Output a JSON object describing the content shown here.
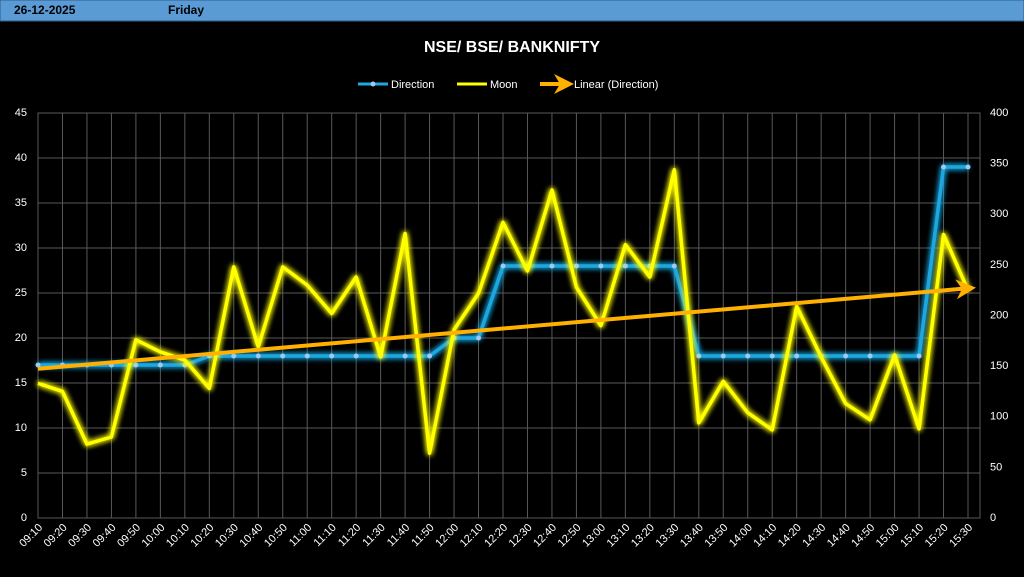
{
  "header": {
    "date": "26-12-2025",
    "day": "Friday"
  },
  "chart_data": {
    "type": "line",
    "title": "NSE/ BSE/ BANKNIFTY",
    "categories": [
      "09:10",
      "09:20",
      "09:30",
      "09:40",
      "09:50",
      "10:00",
      "10:10",
      "10:20",
      "10:30",
      "10:40",
      "10:50",
      "11:00",
      "11:10",
      "11:20",
      "11:30",
      "11:40",
      "11:50",
      "12:00",
      "12:10",
      "12:20",
      "12:30",
      "12:40",
      "12:50",
      "13:00",
      "13:10",
      "13:20",
      "13:30",
      "13:40",
      "13:50",
      "14:00",
      "14:10",
      "14:20",
      "14:30",
      "14:40",
      "14:50",
      "15:00",
      "15:10",
      "15:20",
      "15:30"
    ],
    "series": [
      {
        "name": "Direction",
        "color": "#1fa7e0",
        "values": [
          17,
          17,
          17,
          17,
          17,
          17,
          17,
          18,
          18,
          18,
          18,
          18,
          18,
          18,
          18,
          18,
          18,
          20,
          20,
          28,
          28,
          28,
          28,
          28,
          28,
          28,
          28,
          18,
          18,
          18,
          18,
          18,
          18,
          18,
          18,
          18,
          18,
          39,
          39
        ]
      },
      {
        "name": "Moon",
        "color": "#ffff00",
        "axis": "y2",
        "values": [
          133,
          125,
          73,
          80,
          176,
          164,
          156,
          128,
          248,
          169,
          248,
          230,
          202,
          238,
          159,
          281,
          64,
          186,
          222,
          292,
          244,
          324,
          228,
          190,
          270,
          238,
          344,
          94,
          135,
          104,
          87,
          209,
          159,
          113,
          97,
          161,
          88,
          280,
          225
        ]
      }
    ],
    "trendline": {
      "name": "Linear (Direction)",
      "color": "#ffb000"
    },
    "ylim": [
      0,
      45
    ],
    "yticks": [
      0,
      5,
      10,
      15,
      20,
      25,
      30,
      35,
      40,
      45
    ],
    "y2lim": [
      0,
      400
    ],
    "y2ticks": [
      0,
      50,
      100,
      150,
      200,
      250,
      300,
      350,
      400
    ],
    "grid": true
  }
}
